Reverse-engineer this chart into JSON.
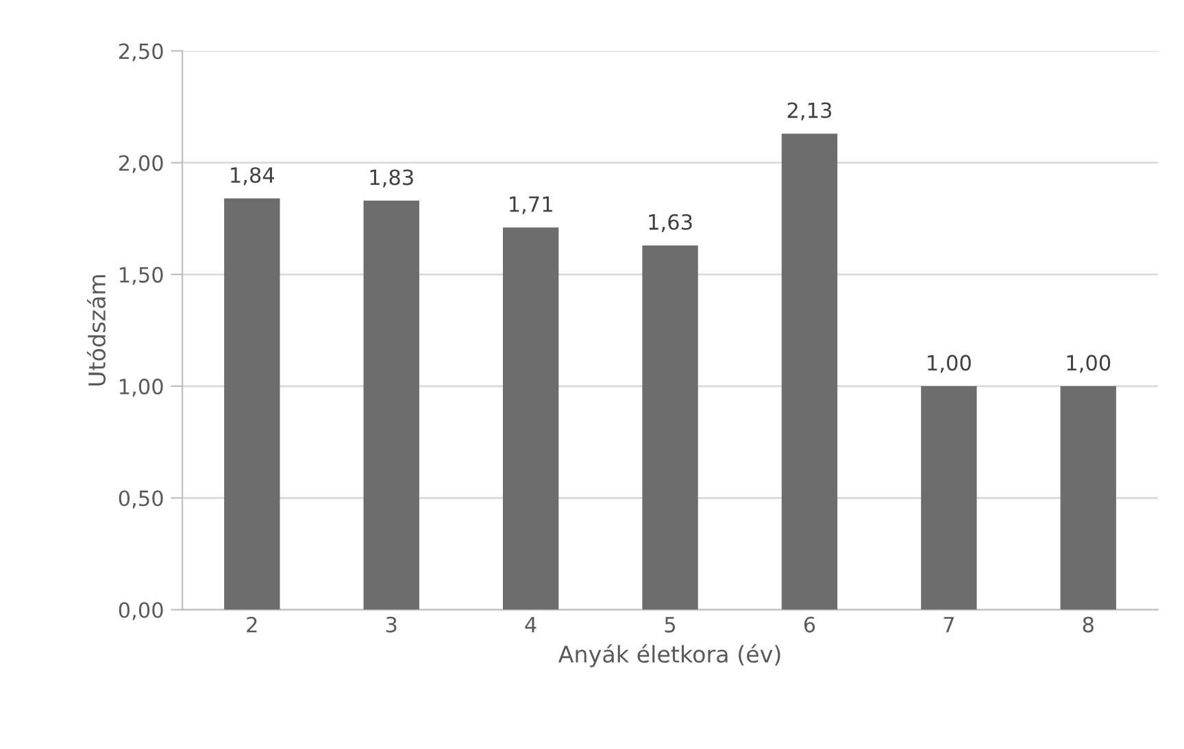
{
  "chart_data": {
    "type": "bar",
    "xlabel": "Anyák életkora (év)",
    "ylabel": "Utódszám",
    "categories": [
      "2",
      "3",
      "4",
      "5",
      "6",
      "7",
      "8"
    ],
    "values": [
      1.84,
      1.83,
      1.71,
      1.63,
      2.13,
      1.0,
      1.0
    ],
    "value_labels": [
      "1,84",
      "1,83",
      "1,71",
      "1,63",
      "2,13",
      "1,00",
      "1,00"
    ],
    "color": "#6d6d6d",
    "ylim": [
      0,
      2.5
    ],
    "yticks": [
      {
        "value": 0,
        "label": "0,00"
      },
      {
        "value": 0.5,
        "label": "0,50"
      },
      {
        "value": 1.0,
        "label": "1,00"
      },
      {
        "value": 1.5,
        "label": "1,50"
      },
      {
        "value": 2.0,
        "label": "2,00"
      },
      {
        "value": 2.5,
        "label": "2,50"
      }
    ],
    "grid": "y"
  }
}
